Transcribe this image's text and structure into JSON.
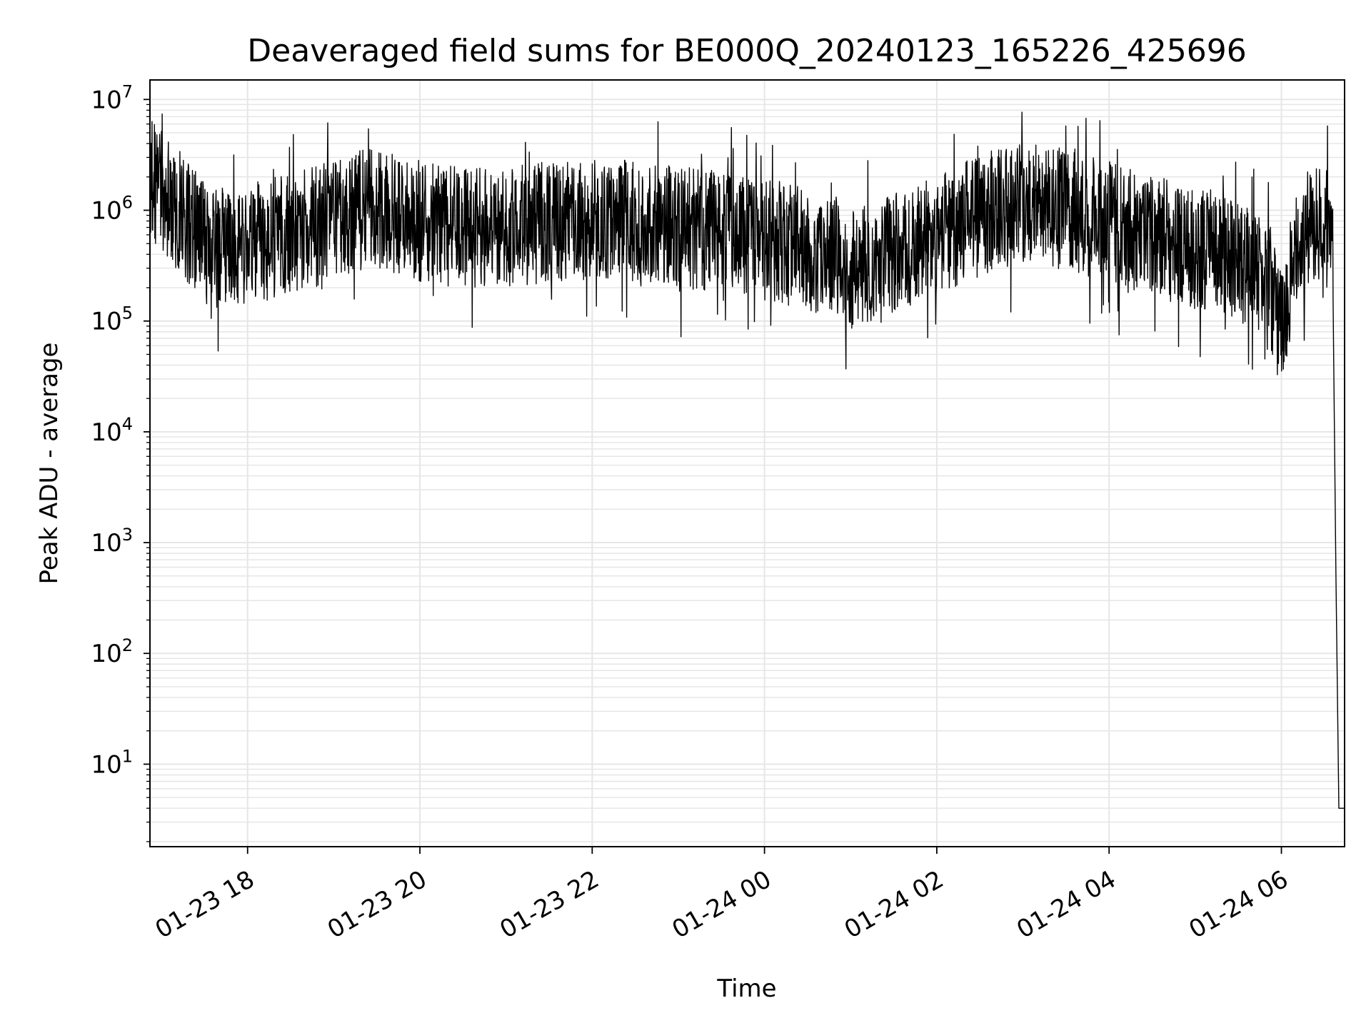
{
  "chart_data": {
    "type": "line",
    "title": "Deaveraged field sums for BE000Q_20240123_165226_425696",
    "xlabel": "Time",
    "ylabel": "Peak ADU - average",
    "yscale": "log",
    "grid": true,
    "legend": "none",
    "line_color": "#000000",
    "grid_color": "#e6e6e6",
    "xlim": [
      "2024-01-23 16:52",
      "2024-01-24 06:44"
    ],
    "ylim": [
      1.8,
      15000000
    ],
    "x_ticks": [
      "2024-01-23 18:00",
      "2024-01-23 20:00",
      "2024-01-23 22:00",
      "2024-01-24 00:00",
      "2024-01-24 02:00",
      "2024-01-24 04:00",
      "2024-01-24 06:00"
    ],
    "x_tick_labels": [
      "01-23 18",
      "01-23 20",
      "01-23 22",
      "01-24 00",
      "01-24 02",
      "01-24 04",
      "01-24 06"
    ],
    "y_ticks": [
      10,
      100,
      1000,
      10000,
      100000,
      1000000,
      10000000
    ],
    "y_tick_labels": [
      {
        "base": "10",
        "exp": "1"
      },
      {
        "base": "10",
        "exp": "2"
      },
      {
        "base": "10",
        "exp": "3"
      },
      {
        "base": "10",
        "exp": "4"
      },
      {
        "base": "10",
        "exp": "5"
      },
      {
        "base": "10",
        "exp": "6"
      },
      {
        "base": "10",
        "exp": "7"
      }
    ],
    "series": [
      {
        "x": [
          "2024-01-23 16:52",
          "2024-01-23 17:00",
          "2024-01-23 17:15",
          "2024-01-23 17:30",
          "2024-01-23 17:45",
          "2024-01-23 18:00",
          "2024-01-23 18:30",
          "2024-01-23 19:00",
          "2024-01-23 19:15",
          "2024-01-23 19:30",
          "2024-01-23 20:00",
          "2024-01-23 20:30",
          "2024-01-23 21:00",
          "2024-01-23 21:30",
          "2024-01-23 22:00",
          "2024-01-23 22:30",
          "2024-01-23 23:00",
          "2024-01-23 23:30",
          "2024-01-24 00:00",
          "2024-01-24 00:30",
          "2024-01-24 01:00",
          "2024-01-24 01:30",
          "2024-01-24 02:00",
          "2024-01-24 02:30",
          "2024-01-24 03:00",
          "2024-01-24 03:30",
          "2024-01-24 04:00",
          "2024-01-24 04:30",
          "2024-01-24 05:00",
          "2024-01-24 05:30",
          "2024-01-24 05:50",
          "2024-01-24 06:00",
          "2024-01-24 06:10",
          "2024-01-24 06:20",
          "2024-01-24 06:30",
          "2024-01-24 06:36",
          "2024-01-24 06:38",
          "2024-01-24 06:40",
          "2024-01-24 06:44"
        ],
        "y": [
          2000000,
          1500000,
          900000,
          500000,
          450000,
          500000,
          600000,
          800000,
          1000000,
          1000000,
          800000,
          700000,
          700000,
          800000,
          800000,
          800000,
          700000,
          650000,
          550000,
          450000,
          300000,
          400000,
          600000,
          900000,
          1200000,
          1000000,
          800000,
          600000,
          450000,
          350000,
          250000,
          100000,
          400000,
          700000,
          800000,
          500000,
          500,
          4,
          4
        ]
      }
    ]
  }
}
